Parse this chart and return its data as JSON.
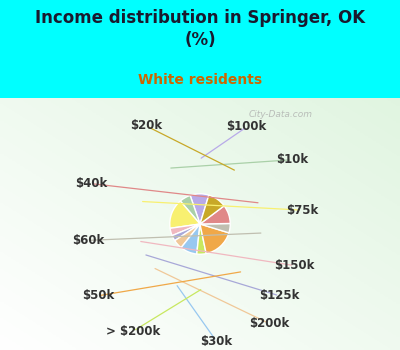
{
  "title": "Income distribution in Springer, OK\n(%)",
  "subtitle": "White residents",
  "title_color": "#1a1a2e",
  "subtitle_color": "#cc6600",
  "bg_cyan": "#00ffff",
  "bg_chart_tl": "#e0f0e0",
  "bg_chart_br": "#ffffff",
  "labels": [
    "$100k",
    "$10k",
    "$75k",
    "$150k",
    "$125k",
    "$200k",
    "$30k",
    "> $200k",
    "$50k",
    "$60k",
    "$40k",
    "$20k"
  ],
  "values": [
    10,
    6,
    16,
    4,
    3,
    5,
    9,
    5,
    17,
    5,
    10,
    10
  ],
  "colors": [
    "#b8aae8",
    "#aad0a8",
    "#f8f070",
    "#f0b8c0",
    "#a8a8d8",
    "#f0c898",
    "#98c8f0",
    "#c8e860",
    "#f0a848",
    "#c0bfb0",
    "#e08888",
    "#c8a828"
  ],
  "label_fontsize": 8.5,
  "label_color": "#333333",
  "watermark": "City-Data.com",
  "startangle": 73
}
